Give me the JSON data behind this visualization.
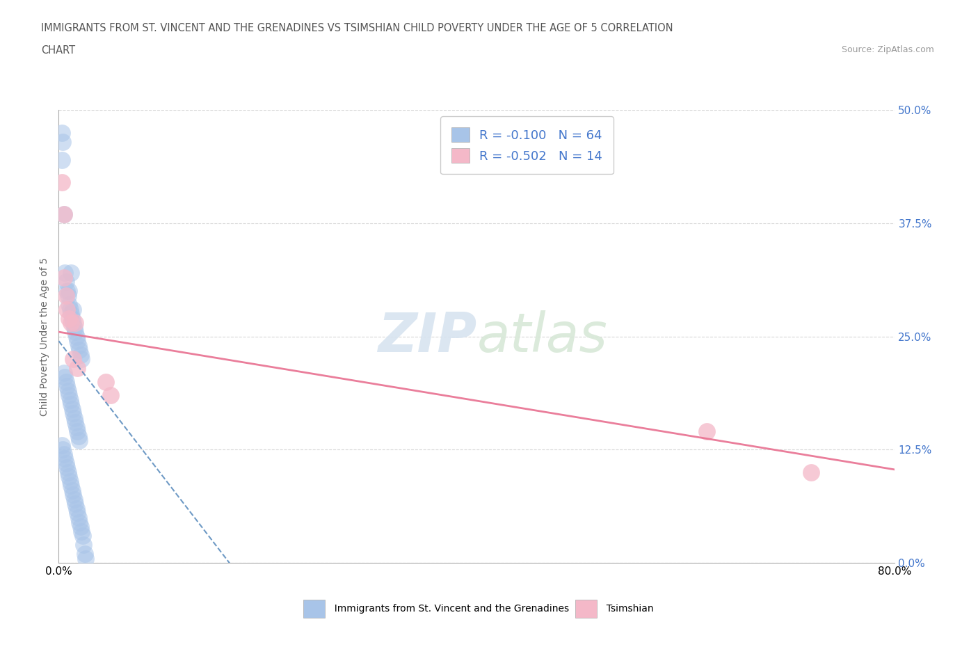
{
  "title_line1": "IMMIGRANTS FROM ST. VINCENT AND THE GRENADINES VS TSIMSHIAN CHILD POVERTY UNDER THE AGE OF 5 CORRELATION",
  "title_line2": "CHART",
  "source": "Source: ZipAtlas.com",
  "ylabel": "Child Poverty Under the Age of 5",
  "xlim": [
    0.0,
    0.8
  ],
  "ylim": [
    0.0,
    0.5
  ],
  "xticks": [
    0.0,
    0.1,
    0.2,
    0.3,
    0.4,
    0.5,
    0.6,
    0.7,
    0.8
  ],
  "xticklabels": [
    "0.0%",
    "",
    "",
    "",
    "",
    "",
    "",
    "",
    "80.0%"
  ],
  "yticks": [
    0.0,
    0.125,
    0.25,
    0.375,
    0.5
  ],
  "yticklabels": [
    "0.0%",
    "12.5%",
    "25.0%",
    "37.5%",
    "50.0%"
  ],
  "R_blue": -0.1,
  "N_blue": 64,
  "R_pink": -0.502,
  "N_pink": 14,
  "blue_color": "#a8c4e8",
  "pink_color": "#f4b8c8",
  "blue_line_color": "#5588bb",
  "pink_line_color": "#e87090",
  "legend_label_blue": "Immigrants from St. Vincent and the Grenadines",
  "legend_label_pink": "Tsimshian",
  "watermark": "ZIPatlas",
  "blue_x": [
    0.003,
    0.004,
    0.003,
    0.005,
    0.006,
    0.007,
    0.008,
    0.009,
    0.01,
    0.011,
    0.012,
    0.013,
    0.014,
    0.015,
    0.016,
    0.017,
    0.018,
    0.019,
    0.02,
    0.021,
    0.022,
    0.01,
    0.012,
    0.014,
    0.005,
    0.006,
    0.007,
    0.008,
    0.009,
    0.01,
    0.011,
    0.012,
    0.013,
    0.014,
    0.015,
    0.016,
    0.017,
    0.018,
    0.019,
    0.02,
    0.003,
    0.004,
    0.005,
    0.006,
    0.007,
    0.008,
    0.009,
    0.01,
    0.011,
    0.012,
    0.013,
    0.014,
    0.015,
    0.016,
    0.017,
    0.018,
    0.019,
    0.02,
    0.021,
    0.022,
    0.023,
    0.024,
    0.025,
    0.026
  ],
  "blue_y": [
    0.475,
    0.465,
    0.445,
    0.385,
    0.32,
    0.31,
    0.3,
    0.295,
    0.285,
    0.28,
    0.275,
    0.27,
    0.265,
    0.26,
    0.255,
    0.25,
    0.245,
    0.24,
    0.235,
    0.23,
    0.225,
    0.3,
    0.32,
    0.28,
    0.21,
    0.205,
    0.2,
    0.195,
    0.19,
    0.185,
    0.18,
    0.175,
    0.17,
    0.165,
    0.16,
    0.155,
    0.15,
    0.145,
    0.14,
    0.135,
    0.13,
    0.125,
    0.12,
    0.115,
    0.11,
    0.105,
    0.1,
    0.095,
    0.09,
    0.085,
    0.08,
    0.075,
    0.07,
    0.065,
    0.06,
    0.055,
    0.05,
    0.045,
    0.04,
    0.035,
    0.03,
    0.02,
    0.01,
    0.005
  ],
  "pink_x": [
    0.003,
    0.005,
    0.005,
    0.007,
    0.008,
    0.01,
    0.012,
    0.014,
    0.016,
    0.018,
    0.045,
    0.05,
    0.62,
    0.72
  ],
  "pink_y": [
    0.42,
    0.385,
    0.315,
    0.295,
    0.28,
    0.27,
    0.265,
    0.225,
    0.265,
    0.215,
    0.2,
    0.185,
    0.145,
    0.1
  ],
  "background_color": "#ffffff",
  "grid_color": "#bbbbbb",
  "tick_label_color_y": "#4477cc",
  "legend_text_color": "#4477cc"
}
